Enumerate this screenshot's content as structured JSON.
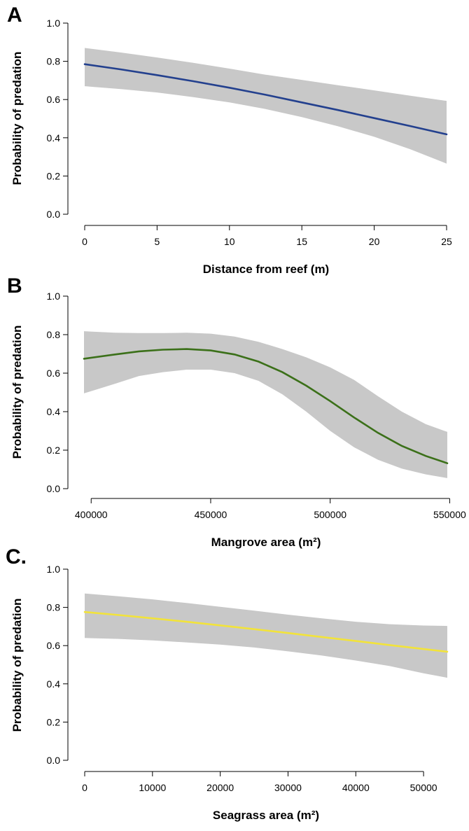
{
  "chart_data": [
    {
      "type": "line",
      "panel_label": "A",
      "xlabel": "Distance from reef (m)",
      "ylabel": "Probability of predation",
      "xlim": [
        0,
        25
      ],
      "ylim": [
        0,
        1
      ],
      "x_ticks": [
        0,
        5,
        10,
        15,
        20,
        25
      ],
      "x_tick_labels": [
        "0",
        "5",
        "10",
        "15",
        "20",
        "25"
      ],
      "y_ticks": [
        0,
        0.2,
        0.4,
        0.6,
        0.8,
        1
      ],
      "y_tick_labels": [
        "0.0",
        "0.2",
        "0.4",
        "0.6",
        "0.8",
        "1.0"
      ],
      "grid": false,
      "series": [
        {
          "color": "#23408e",
          "x": [
            0,
            2.5,
            5,
            7.5,
            10,
            12.5,
            15,
            17.5,
            20,
            22.5,
            25
          ],
          "values": [
            0.785,
            0.758,
            0.728,
            0.696,
            0.662,
            0.625,
            0.585,
            0.545,
            0.503,
            0.461,
            0.418
          ],
          "lower": [
            0.67,
            0.655,
            0.637,
            0.613,
            0.585,
            0.55,
            0.508,
            0.46,
            0.405,
            0.34,
            0.265
          ],
          "upper": [
            0.87,
            0.846,
            0.82,
            0.792,
            0.762,
            0.73,
            0.703,
            0.675,
            0.648,
            0.62,
            0.593
          ]
        }
      ]
    },
    {
      "type": "line",
      "panel_label": "B",
      "xlabel": "Mangrove area (m²)",
      "ylabel": "Probability of predation",
      "xlim": [
        397000,
        549000
      ],
      "ylim": [
        0,
        1
      ],
      "x_ticks": [
        400000,
        450000,
        500000,
        550000
      ],
      "x_tick_labels": [
        "400000",
        "450000",
        "500000",
        "550000"
      ],
      "y_ticks": [
        0,
        0.2,
        0.4,
        0.6,
        0.8,
        1
      ],
      "y_tick_labels": [
        "0.0",
        "0.2",
        "0.4",
        "0.6",
        "0.8",
        "1.0"
      ],
      "grid": false,
      "series": [
        {
          "color": "#3b7019",
          "x": [
            397000,
            410000,
            420000,
            430000,
            440000,
            450000,
            460000,
            470000,
            480000,
            490000,
            500000,
            510000,
            520000,
            530000,
            540000,
            549000
          ],
          "values": [
            0.675,
            0.697,
            0.713,
            0.722,
            0.725,
            0.718,
            0.697,
            0.66,
            0.605,
            0.535,
            0.455,
            0.37,
            0.29,
            0.222,
            0.17,
            0.132
          ],
          "lower": [
            0.495,
            0.545,
            0.585,
            0.605,
            0.618,
            0.618,
            0.6,
            0.56,
            0.49,
            0.4,
            0.3,
            0.215,
            0.15,
            0.104,
            0.074,
            0.055
          ],
          "upper": [
            0.818,
            0.81,
            0.808,
            0.808,
            0.81,
            0.805,
            0.79,
            0.763,
            0.725,
            0.682,
            0.63,
            0.565,
            0.48,
            0.4,
            0.335,
            0.295
          ]
        }
      ]
    },
    {
      "type": "line",
      "panel_label": "C.",
      "xlabel": "Seagrass area (m²)",
      "ylabel": "Probability of predation",
      "xlim": [
        0,
        53500
      ],
      "ylim": [
        0,
        1
      ],
      "x_ticks": [
        0,
        10000,
        20000,
        30000,
        40000,
        50000
      ],
      "x_tick_labels": [
        "0",
        "10000",
        "20000",
        "30000",
        "40000",
        "50000"
      ],
      "y_ticks": [
        0,
        0.2,
        0.4,
        0.6,
        0.8,
        1
      ],
      "y_tick_labels": [
        "0.0",
        "0.2",
        "0.4",
        "0.6",
        "0.8",
        "1.0"
      ],
      "grid": false,
      "series": [
        {
          "color": "#f2e33a",
          "x": [
            0,
            5000,
            10000,
            15000,
            20000,
            25000,
            30000,
            35000,
            40000,
            45000,
            50000,
            53500
          ],
          "values": [
            0.776,
            0.76,
            0.743,
            0.725,
            0.706,
            0.686,
            0.666,
            0.645,
            0.624,
            0.603,
            0.582,
            0.568
          ],
          "lower": [
            0.64,
            0.635,
            0.627,
            0.617,
            0.605,
            0.59,
            0.57,
            0.548,
            0.522,
            0.493,
            0.455,
            0.432
          ],
          "upper": [
            0.873,
            0.858,
            0.842,
            0.823,
            0.803,
            0.783,
            0.762,
            0.743,
            0.725,
            0.712,
            0.705,
            0.703
          ]
        }
      ]
    }
  ]
}
